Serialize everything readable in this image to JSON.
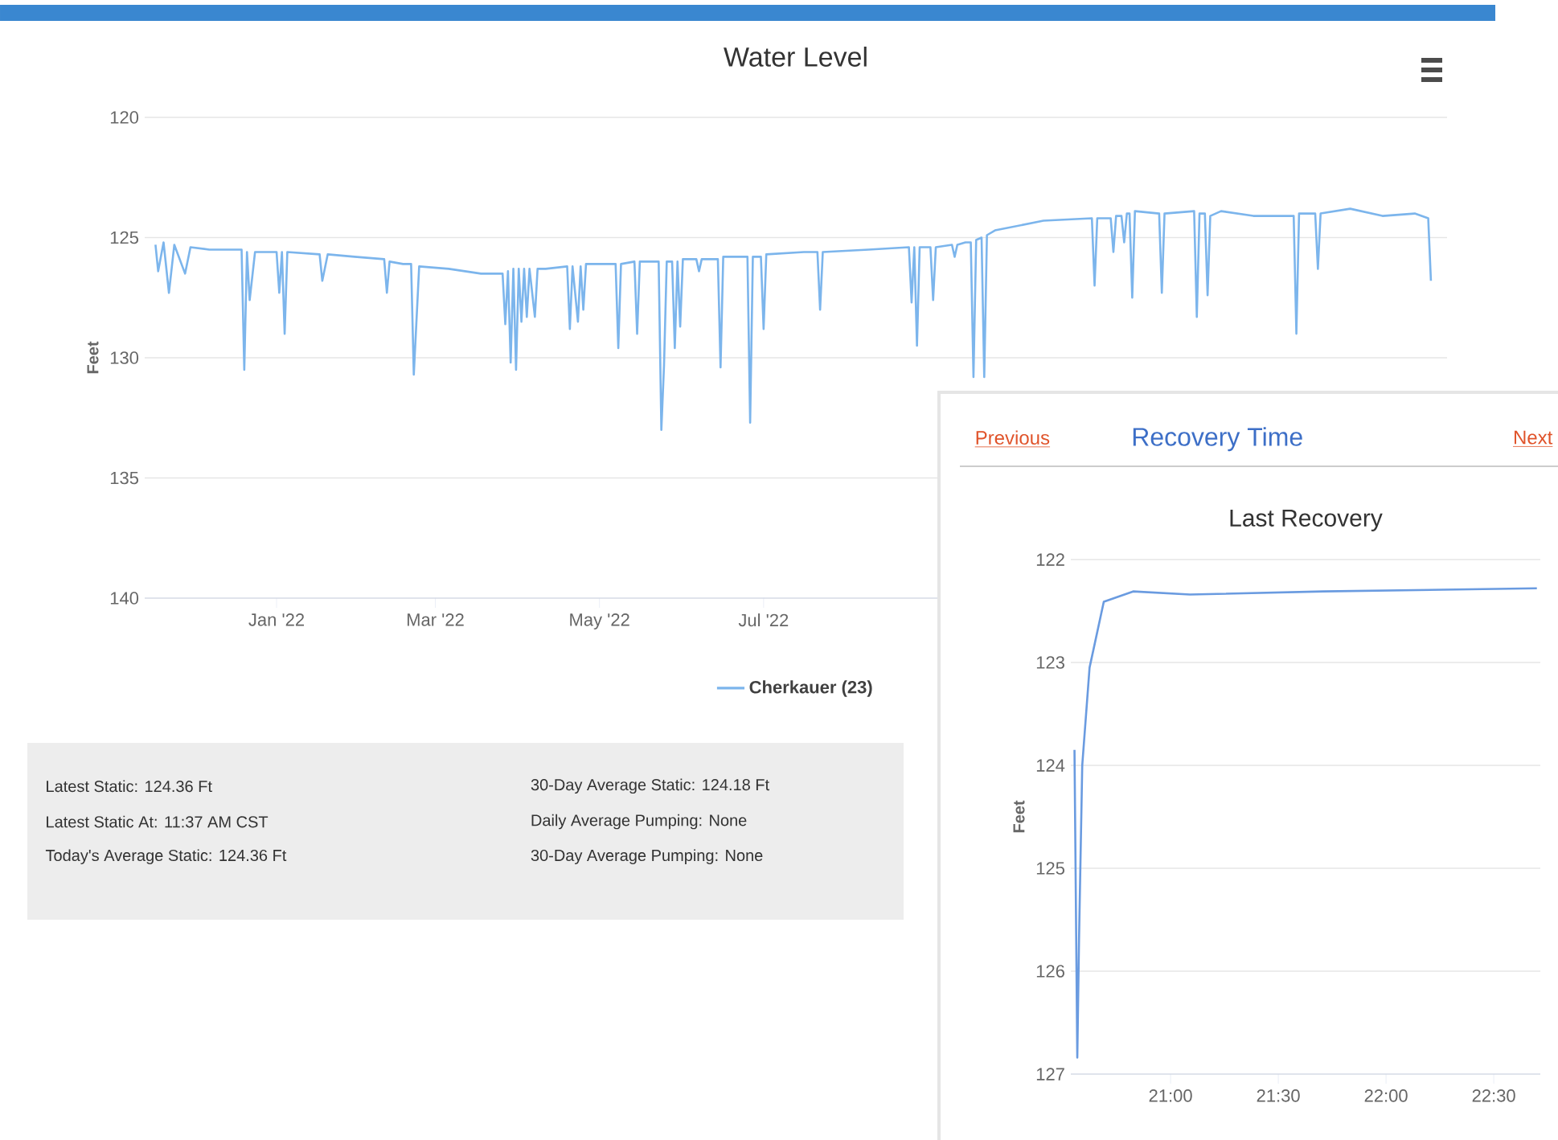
{
  "chart_data": [
    {
      "type": "line",
      "title": "Water Level",
      "ylabel": "Feet",
      "xlim": [
        "2021-11-13",
        "2023-03-12"
      ],
      "xticks": [
        {
          "value": "2022-01-01",
          "label": "Jan '22"
        },
        {
          "value": "2022-03-01",
          "label": "Mar '22"
        },
        {
          "value": "2022-05-01",
          "label": "May '22"
        },
        {
          "value": "2022-07-01",
          "label": "Jul '22"
        }
      ],
      "ylim": [
        140,
        120
      ],
      "yticks": [
        120,
        125,
        130,
        135,
        140
      ],
      "grid": "y",
      "legend": "bottom",
      "series": [
        {
          "name": "Cherkauer (23)",
          "color": "#7cb5ec",
          "x": [
            "2021-11-17",
            "2021-11-18",
            "2021-11-20",
            "2021-11-22",
            "2021-11-24",
            "2021-11-28",
            "2021-11-30",
            "2021-12-07",
            "2021-12-19",
            "2021-12-20",
            "2021-12-21",
            "2021-12-22",
            "2021-12-24",
            "2022-01-01",
            "2022-01-02",
            "2022-01-03",
            "2022-01-04",
            "2022-01-05",
            "2022-01-17",
            "2022-01-18",
            "2022-01-20",
            "2022-01-30",
            "2022-02-10",
            "2022-02-11",
            "2022-02-12",
            "2022-02-17",
            "2022-02-20",
            "2022-02-21",
            "2022-02-23",
            "2022-03-06",
            "2022-03-18",
            "2022-03-26",
            "2022-03-27",
            "2022-03-28",
            "2022-03-29",
            "2022-03-30",
            "2022-03-31",
            "2022-04-01",
            "2022-04-02",
            "2022-04-03",
            "2022-04-04",
            "2022-04-05",
            "2022-04-07",
            "2022-04-08",
            "2022-04-11",
            "2022-04-19",
            "2022-04-20",
            "2022-04-21",
            "2022-04-23",
            "2022-04-24",
            "2022-04-25",
            "2022-04-26",
            "2022-05-07",
            "2022-05-08",
            "2022-05-09",
            "2022-05-14",
            "2022-05-15",
            "2022-05-16",
            "2022-05-23",
            "2022-05-24",
            "2022-05-25",
            "2022-05-26",
            "2022-05-28",
            "2022-05-29",
            "2022-05-30",
            "2022-05-31",
            "2022-06-01",
            "2022-06-06",
            "2022-06-07",
            "2022-06-08",
            "2022-06-14",
            "2022-06-15",
            "2022-06-16",
            "2022-06-25",
            "2022-06-26",
            "2022-06-27",
            "2022-06-30",
            "2022-07-01",
            "2022-07-02",
            "2022-07-16",
            "2022-07-21",
            "2022-07-22",
            "2022-07-23",
            "2022-08-09",
            "2022-08-24",
            "2022-08-25",
            "2022-08-26",
            "2022-08-27",
            "2022-08-28",
            "2022-09-01",
            "2022-09-02",
            "2022-09-03",
            "2022-09-09",
            "2022-09-10",
            "2022-09-11",
            "2022-09-14",
            "2022-09-16",
            "2022-09-17",
            "2022-09-18",
            "2022-09-20",
            "2022-09-21",
            "2022-09-22",
            "2022-09-25",
            "2022-10-13",
            "2022-10-31",
            "2022-11-01",
            "2022-11-02",
            "2022-11-07",
            "2022-11-08",
            "2022-11-09",
            "2022-11-11",
            "2022-11-12",
            "2022-11-13",
            "2022-11-14",
            "2022-11-15",
            "2022-11-16",
            "2022-11-25",
            "2022-11-26",
            "2022-11-27",
            "2022-12-08",
            "2022-12-09",
            "2022-12-10",
            "2022-12-12",
            "2022-12-13",
            "2022-12-14",
            "2022-12-18",
            "2022-12-30",
            "2023-01-14",
            "2023-01-15",
            "2023-01-16",
            "2023-01-22",
            "2023-01-23",
            "2023-01-24",
            "2023-02-04",
            "2023-02-16",
            "2023-02-28",
            "2023-03-05",
            "2023-03-06"
          ],
          "values": [
            125.3,
            126.4,
            125.2,
            127.3,
            125.3,
            126.5,
            125.4,
            125.5,
            125.5,
            130.5,
            125.6,
            127.6,
            125.6,
            125.6,
            127.3,
            125.6,
            129.0,
            125.6,
            125.7,
            126.8,
            125.7,
            125.8,
            125.9,
            127.3,
            126.0,
            126.1,
            126.1,
            130.7,
            126.2,
            126.3,
            126.5,
            126.5,
            128.6,
            126.4,
            130.2,
            126.3,
            130.5,
            126.3,
            128.5,
            126.3,
            128.3,
            126.3,
            128.3,
            126.3,
            126.3,
            126.2,
            128.8,
            126.2,
            128.5,
            126.2,
            128.0,
            126.1,
            126.1,
            129.6,
            126.1,
            126.0,
            129.0,
            126.0,
            126.0,
            133.0,
            130.3,
            126.0,
            126.0,
            129.6,
            126.0,
            128.7,
            125.9,
            125.9,
            126.4,
            125.9,
            125.9,
            130.4,
            125.8,
            125.8,
            132.7,
            125.8,
            125.8,
            128.8,
            125.7,
            125.6,
            125.6,
            128.0,
            125.6,
            125.5,
            125.4,
            127.7,
            125.4,
            129.5,
            125.4,
            125.4,
            127.6,
            125.4,
            125.3,
            125.8,
            125.3,
            125.2,
            125.2,
            130.8,
            125.1,
            125.0,
            130.8,
            124.9,
            124.7,
            124.3,
            124.2,
            127.0,
            124.2,
            124.2,
            125.6,
            124.1,
            124.1,
            125.2,
            124.0,
            124.0,
            127.5,
            123.9,
            124.0,
            127.3,
            124.0,
            123.9,
            128.3,
            124.0,
            124.0,
            127.4,
            124.1,
            123.9,
            124.1,
            124.1,
            129.0,
            124.0,
            124.0,
            126.3,
            124.0,
            123.8,
            124.1,
            124.0,
            124.2,
            126.8
          ]
        }
      ],
      "annotations": [
        "Latest Static: 124.36 Ft",
        "Latest Static At: 11:37 AM CST",
        "Today's Average Static: 124.36 Ft",
        "30-Day Average Static: 124.18 Ft",
        "Daily Average Pumping: None",
        "30-Day Average Pumping: None"
      ]
    },
    {
      "type": "line",
      "title": "Last Recovery",
      "ylabel": "Feet",
      "xlim": [
        20.537,
        22.716
      ],
      "xticks": [
        {
          "value": 21,
          "label": "21:00"
        },
        {
          "value": 21.5,
          "label": "21:30"
        },
        {
          "value": 22,
          "label": "22:00"
        },
        {
          "value": 22.5,
          "label": "22:30"
        }
      ],
      "ylim": [
        127,
        122
      ],
      "yticks": [
        122,
        123,
        124,
        125,
        126,
        127
      ],
      "grid": "y",
      "series": [
        {
          "color": "#6a9be0",
          "x": [
            20.554,
            20.567,
            20.575,
            20.59,
            20.624,
            20.69,
            20.826,
            21.09,
            21.71,
            22.7
          ],
          "values": [
            123.85,
            126.84,
            125.7,
            124.0,
            123.05,
            122.41,
            122.31,
            122.34,
            122.31,
            122.28
          ]
        }
      ],
      "annotations": [
        "Previous",
        "Recovery Time",
        "Next"
      ]
    }
  ]
}
